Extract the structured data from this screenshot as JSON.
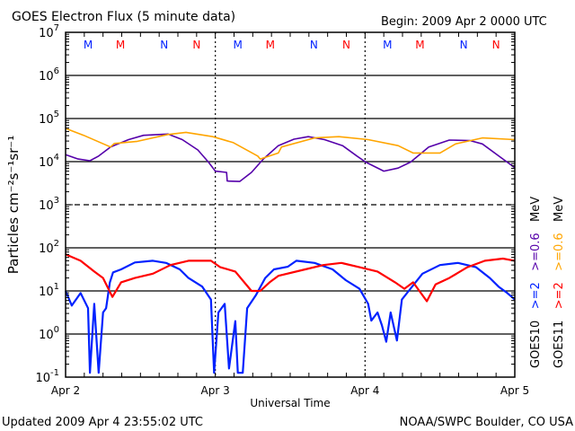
{
  "chart_data": {
    "type": "line",
    "title": "GOES Electron Flux (5 minute data)",
    "begin_label": "Begin: 2009 Apr 2 0000 UTC",
    "xlabel": "Universal Time",
    "ylabel": "Particles cm⁻²s⁻¹sr⁻¹",
    "x_unit": "hours since 2009 Apr 2 0000 UTC",
    "xlim": [
      0,
      72
    ],
    "x_ticks": [
      {
        "h": 0,
        "label": "Apr 2"
      },
      {
        "h": 24,
        "label": "Apr 3"
      },
      {
        "h": 48,
        "label": "Apr 4"
      },
      {
        "h": 72,
        "label": "Apr 5"
      }
    ],
    "yscale": "log",
    "ylim_log10": [
      -1,
      7
    ],
    "y_ticks": [
      {
        "exp": 7,
        "base": "10",
        "sup": "7"
      },
      {
        "exp": 6,
        "base": "10",
        "sup": "6"
      },
      {
        "exp": 5,
        "base": "10",
        "sup": "5"
      },
      {
        "exp": 4,
        "base": "10",
        "sup": "4"
      },
      {
        "exp": 3,
        "base": "10",
        "sup": "3"
      },
      {
        "exp": 2,
        "base": "10",
        "sup": "2"
      },
      {
        "exp": 1,
        "base": "10",
        "sup": "1"
      },
      {
        "exp": 0,
        "base": "10",
        "sup": "0"
      },
      {
        "exp": -1,
        "base": "10",
        "sup": "-1"
      }
    ],
    "solid_gridlines_log10": [
      6,
      5,
      4,
      2,
      1,
      0
    ],
    "dashed_gridlines_log10": [
      3
    ],
    "local_time_markers": [
      {
        "h": 3.6,
        "label": "M",
        "color": "#0022ff"
      },
      {
        "h": 8.8,
        "label": "M",
        "color": "#ff0000"
      },
      {
        "h": 15.8,
        "label": "N",
        "color": "#0022ff"
      },
      {
        "h": 21.0,
        "label": "N",
        "color": "#ff0000"
      },
      {
        "h": 27.6,
        "label": "M",
        "color": "#0022ff"
      },
      {
        "h": 32.8,
        "label": "M",
        "color": "#ff0000"
      },
      {
        "h": 39.8,
        "label": "N",
        "color": "#0022ff"
      },
      {
        "h": 45.0,
        "label": "N",
        "color": "#ff0000"
      },
      {
        "h": 51.6,
        "label": "M",
        "color": "#0022ff"
      },
      {
        "h": 56.8,
        "label": "M",
        "color": "#ff0000"
      },
      {
        "h": 63.8,
        "label": "N",
        "color": "#0022ff"
      },
      {
        "h": 69.0,
        "label": "N",
        "color": "#ff0000"
      }
    ],
    "series": [
      {
        "name": "GOES10 >=0.6 MeV",
        "satellite": "GOES10",
        "energy": ">=0.6",
        "color": "#5500aa",
        "hours": [
          0,
          2,
          3.9,
          5.3,
          7.2,
          10.1,
          12.5,
          16.4,
          18.7,
          21.2,
          22.9,
          24,
          25.8,
          25.9,
          27.9,
          29.8,
          31.7,
          34.1,
          36.6,
          38.9,
          41.5,
          44.4,
          46.7,
          48.1,
          51,
          53.3,
          55.3,
          58.2,
          61.5,
          64.8,
          66.8,
          70.1,
          72
        ],
        "values_log10": [
          4.16,
          4.06,
          4.02,
          4.13,
          4.34,
          4.51,
          4.61,
          4.64,
          4.51,
          4.27,
          3.99,
          3.78,
          3.75,
          3.55,
          3.54,
          3.75,
          4.06,
          4.37,
          4.52,
          4.58,
          4.51,
          4.37,
          4.13,
          3.99,
          3.78,
          3.85,
          3.99,
          4.34,
          4.5,
          4.49,
          4.41,
          4.06,
          3.86
        ]
      },
      {
        "name": "GOES11 >=0.6 MeV",
        "satellite": "GOES11",
        "energy": ">=0.6",
        "color": "#ffa500",
        "hours": [
          0,
          2.9,
          7.2,
          7.8,
          11.5,
          16.4,
          19.3,
          23.6,
          26.9,
          30.8,
          31.2,
          34.1,
          34.6,
          39.9,
          43.8,
          48.5,
          53.3,
          55.7,
          60,
          62.5,
          66.8,
          72
        ],
        "values_log10": [
          4.77,
          4.61,
          4.34,
          4.42,
          4.47,
          4.63,
          4.68,
          4.58,
          4.44,
          4.13,
          4.06,
          4.2,
          4.34,
          4.55,
          4.58,
          4.51,
          4.37,
          4.2,
          4.2,
          4.41,
          4.55,
          4.51
        ]
      },
      {
        "name": "GOES10 >=2 MeV",
        "satellite": "GOES10",
        "energy": ">=2",
        "color": "#0022ff",
        "hours": [
          0,
          1.0,
          2.4,
          3.6,
          3.9,
          4.6,
          5.3,
          6.0,
          6.5,
          7.1,
          7.6,
          8.9,
          11.1,
          14.0,
          16.1,
          18.3,
          19.7,
          21.9,
          23.3,
          23.8,
          24.5,
          25.5,
          26.2,
          27.2,
          27.6,
          28.4,
          29.1,
          30.5,
          32.0,
          33.4,
          35.6,
          37.0,
          39.9,
          42.8,
          44.9,
          47.1,
          48.5,
          49.0,
          50.0,
          50.7,
          51.4,
          52.1,
          53.1,
          53.9,
          55.0,
          57.2,
          60.0,
          62.9,
          65.8,
          68.0,
          69.4,
          70.8,
          72
        ],
        "values_log10": [
          1.0,
          0.66,
          0.95,
          0.6,
          -0.9,
          0.7,
          -0.9,
          0.5,
          0.6,
          1.2,
          1.43,
          1.5,
          1.66,
          1.7,
          1.65,
          1.5,
          1.3,
          1.1,
          0.8,
          -0.9,
          0.5,
          0.7,
          -0.8,
          0.3,
          -0.9,
          -0.9,
          0.6,
          0.9,
          1.3,
          1.5,
          1.56,
          1.7,
          1.65,
          1.5,
          1.25,
          1.05,
          0.7,
          0.31,
          0.5,
          0.2,
          -0.18,
          0.5,
          -0.15,
          0.8,
          1.0,
          1.4,
          1.6,
          1.65,
          1.55,
          1.3,
          1.1,
          0.95,
          0.8
        ]
      },
      {
        "name": "GOES11 >=2 MeV",
        "satellite": "GOES11",
        "energy": ">=2",
        "color": "#ff0000",
        "hours": [
          0,
          2.4,
          4.6,
          6.0,
          7.5,
          8.9,
          11.1,
          14.0,
          16.8,
          19.7,
          23.3,
          24.8,
          27.2,
          29.8,
          31.2,
          32.7,
          34.1,
          38.4,
          41.3,
          44.2,
          47.1,
          50.0,
          52.8,
          54.3,
          55.7,
          57.9,
          59.3,
          61.5,
          64.4,
          67.2,
          70.1,
          72
        ],
        "values_log10": [
          1.85,
          1.7,
          1.45,
          1.3,
          0.86,
          1.2,
          1.3,
          1.4,
          1.6,
          1.7,
          1.7,
          1.55,
          1.45,
          1.0,
          1.0,
          1.2,
          1.35,
          1.5,
          1.6,
          1.65,
          1.55,
          1.45,
          1.2,
          1.05,
          1.2,
          0.76,
          1.15,
          1.3,
          1.55,
          1.7,
          1.75,
          1.7
        ]
      }
    ],
    "legend": {
      "placement": "right",
      "unit": "MeV",
      "entries": [
        {
          "sat": "GOES10",
          "low": ">=2",
          "high": ">=0.6",
          "low_color": "#0022ff",
          "high_color": "#5500aa"
        },
        {
          "sat": "GOES11",
          "low": ">=2",
          "high": ">=0.6",
          "low_color": "#ff0000",
          "high_color": "#ffa500"
        }
      ]
    }
  },
  "footer": {
    "updated": "Updated 2009 Apr  4 23:55:02 UTC",
    "source": "NOAA/SWPC Boulder, CO USA"
  }
}
